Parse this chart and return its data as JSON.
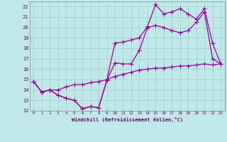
{
  "xlabel": "Windchill (Refroidissement éolien,°C)",
  "bg_color": "#c0e8e8",
  "grid_color": "#a0cccc",
  "line_color": "#990099",
  "xlim": [
    -0.5,
    23.5
  ],
  "ylim": [
    12,
    22.5
  ],
  "xticks": [
    0,
    1,
    2,
    3,
    4,
    5,
    6,
    7,
    8,
    9,
    10,
    11,
    12,
    13,
    14,
    15,
    16,
    17,
    18,
    19,
    20,
    21,
    22,
    23
  ],
  "yticks": [
    12,
    13,
    14,
    15,
    16,
    17,
    18,
    19,
    20,
    21,
    22
  ],
  "line1_x": [
    0,
    1,
    2,
    3,
    4,
    5,
    6,
    7,
    8,
    9,
    10,
    11,
    12,
    13,
    14,
    15,
    16,
    17,
    18,
    19,
    20,
    21,
    22,
    23
  ],
  "line1_y": [
    14.8,
    13.8,
    14.0,
    14.0,
    14.3,
    14.5,
    14.5,
    14.7,
    14.8,
    15.0,
    15.3,
    15.5,
    15.7,
    15.9,
    16.0,
    16.1,
    16.1,
    16.2,
    16.3,
    16.3,
    16.4,
    16.5,
    16.4,
    16.5
  ],
  "line2_x": [
    0,
    1,
    2,
    3,
    4,
    5,
    6,
    7,
    8,
    9,
    10,
    11,
    12,
    13,
    14,
    15,
    16,
    17,
    18,
    19,
    20,
    21,
    22,
    23
  ],
  "line2_y": [
    14.8,
    13.8,
    14.0,
    13.5,
    13.2,
    13.0,
    12.2,
    12.4,
    12.3,
    14.9,
    16.6,
    16.5,
    16.5,
    17.8,
    20.0,
    20.2,
    20.0,
    19.7,
    19.5,
    19.7,
    20.5,
    21.5,
    17.0,
    16.5
  ],
  "line3_x": [
    0,
    1,
    2,
    3,
    4,
    5,
    6,
    7,
    8,
    9,
    10,
    11,
    12,
    13,
    14,
    15,
    16,
    17,
    18,
    19,
    20,
    21,
    22,
    23
  ],
  "line3_y": [
    14.8,
    13.8,
    14.0,
    13.5,
    13.2,
    13.0,
    12.2,
    12.4,
    12.3,
    14.9,
    18.5,
    18.6,
    18.8,
    19.0,
    20.1,
    22.2,
    21.3,
    21.5,
    21.8,
    21.3,
    20.8,
    21.8,
    18.5,
    16.5
  ]
}
